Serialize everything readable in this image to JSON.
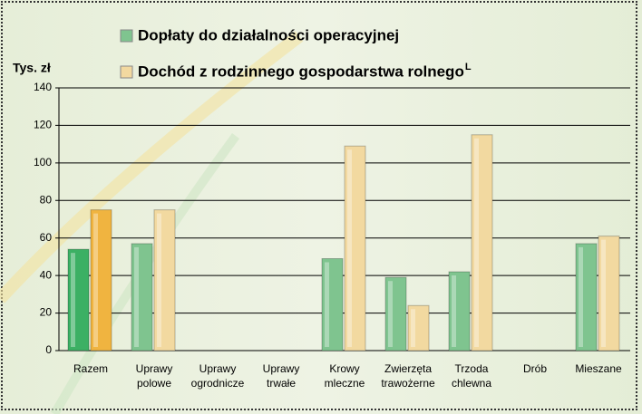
{
  "chart_data": {
    "type": "bar",
    "y_label": "Tys. zł",
    "categories": [
      "Razem",
      "Uprawy\npolowe",
      "Uprawy\nogrodnicze",
      "Uprawy\ntrwałe",
      "Krowy\nmleczne",
      "Zwierzęta\ntrawożerne",
      "Trzoda\nchlewna",
      "Drób",
      "Mieszane"
    ],
    "series": [
      {
        "name": "Dopłaty do działalności operacyjnej",
        "color": "#7fc48f",
        "colors": [
          "#3cb064",
          "#7fc48f",
          "#7fc48f",
          "#7fc48f",
          "#7fc48f",
          "#7fc48f",
          "#7fc48f",
          "#7fc48f",
          "#7fc48f"
        ],
        "values": [
          54,
          57,
          null,
          null,
          49,
          39,
          42,
          null,
          57
        ]
      },
      {
        "name": "Dochód z rodzinnego gospodarstwa rolnego",
        "superscript": "L",
        "color": "#f2d9a0",
        "colors": [
          "#f0b440",
          "#f2d9a0",
          "#f2d9a0",
          "#f2d9a0",
          "#f2d9a0",
          "#f2d9a0",
          "#f2d9a0",
          "#f2d9a0",
          "#f2d9a0"
        ],
        "values": [
          75,
          75,
          null,
          null,
          109,
          24,
          115,
          null,
          61
        ]
      }
    ],
    "ylim": [
      0,
      140
    ],
    "yticks": [
      0,
      20,
      40,
      60,
      80,
      100,
      120,
      140
    ],
    "grid": true
  }
}
